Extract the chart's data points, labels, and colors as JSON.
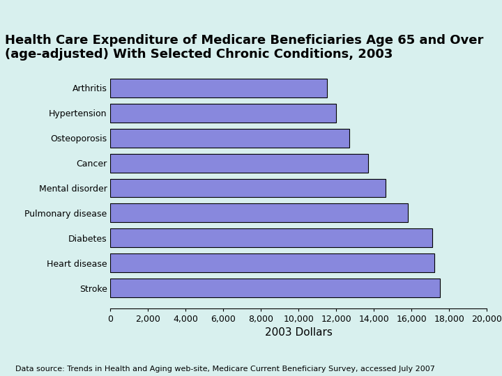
{
  "title": "Health Care Expenditure of Medicare Beneficiaries Age 65 and Over\n(age-adjusted) With Selected Chronic Conditions, 2003",
  "categories": [
    "Arthritis",
    "Hypertension",
    "Osteoporosis",
    "Cancer",
    "Mental disorder",
    "Pulmonary disease",
    "Diabetes",
    "Heart disease",
    "Stroke"
  ],
  "values": [
    11500,
    12000,
    12700,
    13700,
    14600,
    15800,
    17100,
    17200,
    17500
  ],
  "bar_color": "#8888DD",
  "bar_edgecolor": "#000000",
  "background_color": "#D8F0EE",
  "xlim": [
    0,
    20000
  ],
  "xticks": [
    0,
    2000,
    4000,
    6000,
    8000,
    10000,
    12000,
    14000,
    16000,
    18000,
    20000
  ],
  "xtick_labels": [
    "0",
    "2,000",
    "4,000",
    "6,000",
    "8,000",
    "10,000",
    "12,000",
    "14,000",
    "16,000",
    "18,000",
    "20,000"
  ],
  "xlabel": "2003 Dollars",
  "footnote": "Data source: Trends in Health and Aging web-site, Medicare Current Beneficiary Survey, accessed July 2007",
  "title_fontsize": 13,
  "xlabel_fontsize": 11,
  "tick_fontsize": 9,
  "label_fontsize": 9,
  "footnote_fontsize": 8
}
